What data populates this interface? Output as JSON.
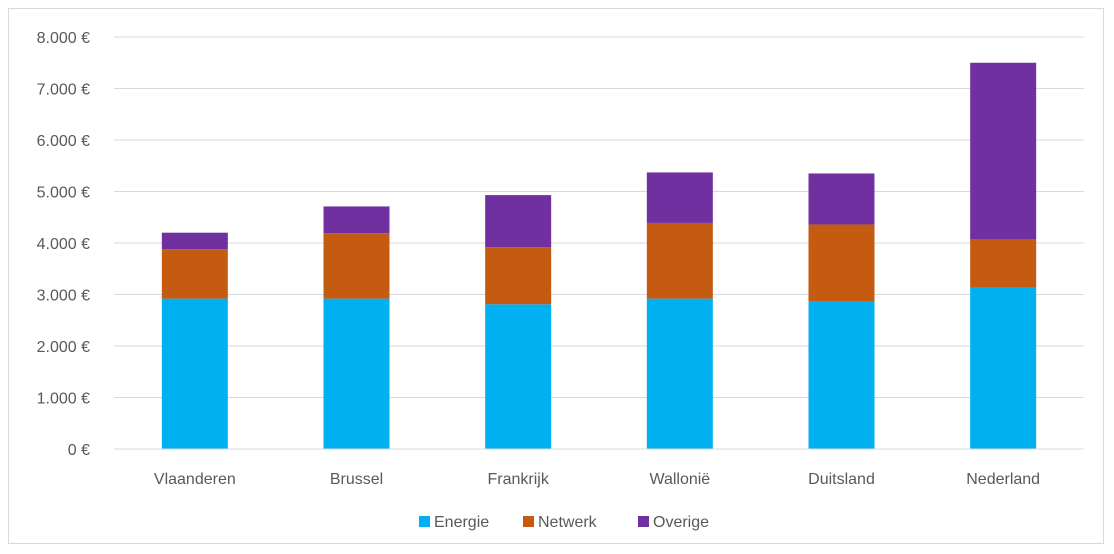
{
  "chart_data": {
    "type": "bar",
    "stacked": true,
    "categories": [
      "Vlaanderen",
      "Brussel",
      "Frankrijk",
      "Wallonië",
      "Duitsland",
      "Nederland"
    ],
    "series": [
      {
        "name": "Energie",
        "color": "#00b0f0",
        "values": [
          2920,
          2920,
          2810,
          2920,
          2860,
          3130
        ]
      },
      {
        "name": "Netwerk",
        "color": "#c55a11",
        "values": [
          960,
          1270,
          1110,
          1470,
          1500,
          940
        ]
      },
      {
        "name": "Overige",
        "color": "#7030a0",
        "values": [
          320,
          520,
          1010,
          980,
          990,
          3430
        ]
      }
    ],
    "y_ticks": [
      "0 €",
      "1.000 €",
      "2.000 €",
      "3.000 €",
      "4.000 €",
      "5.000 €",
      "6.000 €",
      "7.000 €",
      "8.000 €"
    ],
    "ylim": [
      0,
      8000
    ],
    "grid": true,
    "legend_position": "bottom"
  }
}
